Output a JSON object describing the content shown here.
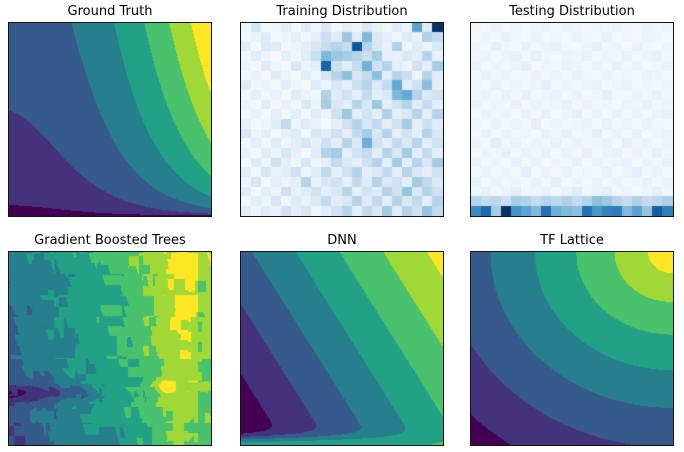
{
  "figure": {
    "background": "#ffffff",
    "spine_color": "#141414",
    "title_color": "#000000"
  },
  "colormaps": {
    "viridis": [
      "#440154",
      "#482475",
      "#414487",
      "#345e8d",
      "#2a788e",
      "#21918c",
      "#22a884",
      "#42be71",
      "#7ad151",
      "#bdde26",
      "#fde725"
    ],
    "blues": [
      "#f7fbff",
      "#deebf7",
      "#c6dbef",
      "#9ecae1",
      "#6baed6",
      "#4292c6",
      "#2171b5",
      "#08519c",
      "#08306b"
    ]
  },
  "chart_data": [
    {
      "id": "ground-truth",
      "title": "Ground Truth",
      "type": "contour",
      "colormap": "viridis",
      "levels": 8,
      "x_range": [
        0,
        1
      ],
      "y_range": [
        0,
        1
      ],
      "ticks": false,
      "model": "product",
      "params": {
        "a0": 0.3,
        "a1": 0.04,
        "a2": 0.66,
        "yexp": 0.3
      }
    },
    {
      "id": "training-distribution",
      "title": "Training Distribution",
      "type": "heatmap",
      "colormap": "blues",
      "rows": 20,
      "cols": 20,
      "ticks": false,
      "grid": [
        [
          0.05,
          0.18,
          0.02,
          0.04,
          0.1,
          0.02,
          0.12,
          0.04,
          0.14,
          0.03,
          0.1,
          0.06,
          0.16,
          0.08,
          0.04,
          0.12,
          0.06,
          0.55,
          0.12,
          1.0
        ],
        [
          0.02,
          0.06,
          0.12,
          0.02,
          0.05,
          0.1,
          0.03,
          0.1,
          0.22,
          0.12,
          0.38,
          0.12,
          0.45,
          0.15,
          0.1,
          0.05,
          0.12,
          0.08,
          0.32,
          0.25
        ],
        [
          0.1,
          0.02,
          0.14,
          0.12,
          0.03,
          0.06,
          0.1,
          0.16,
          0.25,
          0.3,
          0.25,
          0.85,
          0.3,
          0.15,
          0.08,
          0.32,
          0.05,
          0.12,
          0.06,
          0.16
        ],
        [
          0.03,
          0.12,
          0.05,
          0.02,
          0.1,
          0.04,
          0.12,
          0.22,
          0.45,
          0.38,
          0.35,
          0.3,
          0.22,
          0.35,
          0.1,
          0.08,
          0.15,
          0.1,
          0.3,
          0.08
        ],
        [
          0.06,
          0.02,
          0.12,
          0.05,
          0.02,
          0.14,
          0.06,
          0.1,
          0.8,
          0.2,
          0.12,
          0.25,
          0.48,
          0.2,
          0.3,
          0.1,
          0.06,
          0.2,
          0.1,
          0.35
        ],
        [
          0.02,
          0.08,
          0.03,
          0.12,
          0.06,
          0.02,
          0.1,
          0.05,
          0.16,
          0.3,
          0.42,
          0.15,
          0.25,
          0.42,
          0.1,
          0.3,
          0.22,
          0.06,
          0.3,
          0.12
        ],
        [
          0.12,
          0.03,
          0.06,
          0.02,
          0.1,
          0.05,
          0.02,
          0.12,
          0.06,
          0.16,
          0.1,
          0.22,
          0.3,
          0.15,
          0.25,
          0.52,
          0.12,
          0.2,
          0.42,
          0.1
        ],
        [
          0.02,
          0.1,
          0.04,
          0.08,
          0.02,
          0.12,
          0.06,
          0.03,
          0.32,
          0.12,
          0.2,
          0.1,
          0.25,
          0.1,
          0.15,
          0.45,
          0.52,
          0.3,
          0.15,
          0.2
        ],
        [
          0.06,
          0.02,
          0.12,
          0.03,
          0.08,
          0.02,
          0.14,
          0.06,
          0.35,
          0.15,
          0.1,
          0.3,
          0.15,
          0.38,
          0.1,
          0.2,
          0.3,
          0.12,
          0.25,
          0.1
        ],
        [
          0.02,
          0.08,
          0.02,
          0.1,
          0.04,
          0.1,
          0.03,
          0.12,
          0.06,
          0.2,
          0.38,
          0.1,
          0.2,
          0.1,
          0.32,
          0.1,
          0.15,
          0.3,
          0.1,
          0.3
        ],
        [
          0.08,
          0.02,
          0.06,
          0.12,
          0.26,
          0.05,
          0.12,
          0.08,
          0.02,
          0.1,
          0.2,
          0.3,
          0.15,
          0.26,
          0.1,
          0.2,
          0.35,
          0.1,
          0.22,
          0.12
        ],
        [
          0.16,
          0.05,
          0.1,
          0.02,
          0.08,
          0.12,
          0.04,
          0.15,
          0.1,
          0.2,
          0.1,
          0.26,
          0.35,
          0.15,
          0.3,
          0.1,
          0.2,
          0.1,
          0.3,
          0.15
        ],
        [
          0.04,
          0.1,
          0.03,
          0.12,
          0.05,
          0.1,
          0.16,
          0.08,
          0.2,
          0.1,
          0.3,
          0.15,
          0.5,
          0.2,
          0.1,
          0.26,
          0.15,
          0.3,
          0.1,
          0.2
        ],
        [
          0.08,
          0.03,
          0.12,
          0.06,
          0.16,
          0.08,
          0.02,
          0.1,
          0.3,
          0.36,
          0.1,
          0.2,
          0.26,
          0.1,
          0.3,
          0.15,
          0.36,
          0.1,
          0.26,
          0.1
        ],
        [
          0.02,
          0.12,
          0.05,
          0.2,
          0.1,
          0.04,
          0.16,
          0.06,
          0.1,
          0.26,
          0.15,
          0.1,
          0.2,
          0.3,
          0.1,
          0.36,
          0.1,
          0.3,
          0.15,
          0.36
        ],
        [
          0.1,
          0.04,
          0.16,
          0.08,
          0.12,
          0.2,
          0.05,
          0.12,
          0.26,
          0.1,
          0.2,
          0.3,
          0.1,
          0.15,
          0.26,
          0.1,
          0.3,
          0.15,
          0.1,
          0.2
        ],
        [
          0.05,
          0.16,
          0.02,
          0.1,
          0.06,
          0.1,
          0.3,
          0.08,
          0.15,
          0.2,
          0.1,
          0.26,
          0.12,
          0.3,
          0.15,
          0.2,
          0.1,
          0.36,
          0.26,
          0.15
        ],
        [
          0.12,
          0.03,
          0.1,
          0.05,
          0.2,
          0.08,
          0.12,
          0.2,
          0.1,
          0.15,
          0.3,
          0.1,
          0.2,
          0.12,
          0.3,
          0.2,
          0.4,
          0.15,
          0.3,
          0.2
        ],
        [
          0.03,
          0.1,
          0.06,
          0.16,
          0.04,
          0.12,
          0.08,
          0.15,
          0.26,
          0.1,
          0.15,
          0.3,
          0.12,
          0.26,
          0.1,
          0.3,
          0.15,
          0.26,
          0.1,
          0.3
        ],
        [
          0.1,
          0.05,
          0.12,
          0.08,
          0.2,
          0.1,
          0.16,
          0.05,
          0.1,
          0.2,
          0.3,
          0.1,
          0.26,
          0.15,
          0.36,
          0.12,
          0.3,
          0.2,
          0.4,
          0.26
        ]
      ]
    },
    {
      "id": "testing-distribution",
      "title": "Testing Distribution",
      "type": "heatmap",
      "colormap": "blues",
      "rows": 20,
      "cols": 20,
      "ticks": false,
      "grid": [
        [
          0.04,
          0.02,
          0.06,
          0.03,
          0.05,
          0.02,
          0.04,
          0.06,
          0.03,
          0.05,
          0.04,
          0.02,
          0.05,
          0.03,
          0.06,
          0.04,
          0.02,
          0.05,
          0.03,
          0.06
        ],
        [
          0.02,
          0.05,
          0.03,
          0.08,
          0.04,
          0.02,
          0.06,
          0.03,
          0.05,
          0.02,
          0.06,
          0.04,
          0.03,
          0.07,
          0.02,
          0.05,
          0.03,
          0.06,
          0.04,
          0.02
        ],
        [
          0.05,
          0.03,
          0.09,
          0.04,
          0.02,
          0.07,
          0.03,
          0.05,
          0.08,
          0.03,
          0.02,
          0.05,
          0.09,
          0.03,
          0.05,
          0.02,
          0.07,
          0.04,
          0.02,
          0.05
        ],
        [
          0.03,
          0.06,
          0.02,
          0.05,
          0.08,
          0.03,
          0.1,
          0.04,
          0.02,
          0.06,
          0.04,
          0.08,
          0.02,
          0.05,
          0.03,
          0.07,
          0.02,
          0.05,
          0.08,
          0.03
        ],
        [
          0.06,
          0.02,
          0.05,
          0.03,
          0.06,
          0.09,
          0.02,
          0.05,
          0.03,
          0.07,
          0.05,
          0.02,
          0.06,
          0.03,
          0.08,
          0.04,
          0.06,
          0.02,
          0.04,
          0.07
        ],
        [
          0.02,
          0.07,
          0.03,
          0.06,
          0.02,
          0.04,
          0.08,
          0.03,
          0.06,
          0.02,
          0.08,
          0.05,
          0.03,
          0.06,
          0.02,
          0.05,
          0.03,
          0.08,
          0.05,
          0.02
        ],
        [
          0.05,
          0.03,
          0.08,
          0.02,
          0.06,
          0.03,
          0.05,
          0.09,
          0.02,
          0.05,
          0.03,
          0.06,
          0.08,
          0.02,
          0.05,
          0.07,
          0.02,
          0.04,
          0.03,
          0.06
        ],
        [
          0.03,
          0.06,
          0.02,
          0.07,
          0.04,
          0.08,
          0.02,
          0.05,
          0.07,
          0.03,
          0.06,
          0.02,
          0.05,
          0.09,
          0.03,
          0.02,
          0.06,
          0.03,
          0.07,
          0.04
        ],
        [
          0.07,
          0.02,
          0.05,
          0.03,
          0.08,
          0.02,
          0.06,
          0.03,
          0.05,
          0.08,
          0.02,
          0.07,
          0.03,
          0.05,
          0.02,
          0.06,
          0.04,
          0.08,
          0.02,
          0.05
        ],
        [
          0.02,
          0.06,
          0.03,
          0.05,
          0.02,
          0.07,
          0.03,
          0.08,
          0.02,
          0.05,
          0.09,
          0.03,
          0.06,
          0.02,
          0.07,
          0.03,
          0.05,
          0.02,
          0.06,
          0.08
        ],
        [
          0.05,
          0.03,
          0.07,
          0.02,
          0.06,
          0.03,
          0.09,
          0.02,
          0.06,
          0.03,
          0.05,
          0.07,
          0.02,
          0.08,
          0.03,
          0.06,
          0.02,
          0.07,
          0.04,
          0.03
        ],
        [
          0.03,
          0.08,
          0.02,
          0.06,
          0.03,
          0.05,
          0.02,
          0.07,
          0.04,
          0.08,
          0.03,
          0.05,
          0.09,
          0.02,
          0.06,
          0.03,
          0.08,
          0.02,
          0.05,
          0.07
        ],
        [
          0.06,
          0.02,
          0.09,
          0.03,
          0.07,
          0.02,
          0.05,
          0.03,
          0.08,
          0.02,
          0.06,
          0.03,
          0.05,
          0.07,
          0.02,
          0.09,
          0.03,
          0.06,
          0.02,
          0.05
        ],
        [
          0.02,
          0.05,
          0.03,
          0.08,
          0.02,
          0.06,
          0.03,
          0.07,
          0.02,
          0.06,
          0.03,
          0.09,
          0.02,
          0.05,
          0.08,
          0.02,
          0.06,
          0.03,
          0.08,
          0.04
        ],
        [
          0.07,
          0.03,
          0.05,
          0.02,
          0.08,
          0.03,
          0.06,
          0.02,
          0.05,
          0.03,
          0.08,
          0.02,
          0.06,
          0.03,
          0.05,
          0.07,
          0.02,
          0.05,
          0.03,
          0.08
        ],
        [
          0.03,
          0.06,
          0.02,
          0.05,
          0.03,
          0.09,
          0.02,
          0.06,
          0.03,
          0.07,
          0.02,
          0.05,
          0.03,
          0.08,
          0.02,
          0.06,
          0.09,
          0.02,
          0.06,
          0.03
        ],
        [
          0.08,
          0.02,
          0.06,
          0.03,
          0.05,
          0.02,
          0.07,
          0.03,
          0.09,
          0.02,
          0.05,
          0.03,
          0.07,
          0.02,
          0.06,
          0.03,
          0.05,
          0.08,
          0.02,
          0.06
        ],
        [
          0.05,
          0.08,
          0.03,
          0.06,
          0.1,
          0.03,
          0.05,
          0.08,
          0.02,
          0.06,
          0.12,
          0.04,
          0.07,
          0.1,
          0.03,
          0.06,
          0.02,
          0.05,
          0.09,
          0.04
        ],
        [
          0.3,
          0.25,
          0.28,
          0.22,
          0.35,
          0.32,
          0.25,
          0.3,
          0.27,
          0.32,
          0.25,
          0.3,
          0.42,
          0.38,
          0.3,
          0.25,
          0.32,
          0.25,
          0.28,
          0.33
        ],
        [
          0.65,
          0.78,
          0.35,
          1.0,
          0.62,
          0.55,
          0.45,
          0.75,
          0.5,
          0.45,
          0.42,
          0.75,
          0.6,
          0.68,
          0.7,
          0.45,
          0.55,
          0.4,
          0.82,
          0.7
        ]
      ]
    },
    {
      "id": "gradient-boosted-trees",
      "title": "Gradient Boosted Trees",
      "type": "contour",
      "colormap": "viridis",
      "levels": 8,
      "x_range": [
        0,
        1
      ],
      "y_range": [
        0,
        1
      ],
      "ticks": false,
      "model": "trees",
      "params": {
        "base": 0.26,
        "wx": 0.52,
        "wy": 0.14,
        "cells": 19,
        "stripes": 9,
        "jitter": 0.09,
        "noise": 0.1,
        "ridge": {
          "x0": 0.82,
          "sx": 0.09,
          "amp": 0.08
        },
        "streak": {
          "y0": 0.27,
          "sy": 0.05,
          "xs": 0.45,
          "amp": 0.2
        },
        "hline": {
          "y0": 0.3,
          "sy": 0.025,
          "amp": 0.1,
          "x0": 0.5
        },
        "hotspot": {
          "x0": 0.78,
          "y0": 0.3,
          "s": 0.03,
          "amp": 0.25
        },
        "dip": {
          "x0": 0.94,
          "amp": 0.09
        }
      }
    },
    {
      "id": "dnn",
      "title": "DNN",
      "type": "contour",
      "colormap": "viridis",
      "levels": 8,
      "x_range": [
        0,
        1
      ],
      "y_range": [
        0,
        1
      ],
      "ticks": false,
      "model": "linear-bump",
      "params": {
        "wx": 0.7,
        "wy": 0.42,
        "scale": 0.82,
        "bump": {
          "v": 0.53,
          "vx": 0.1,
          "sy": 0.045
        }
      }
    },
    {
      "id": "tf-lattice",
      "title": "TF Lattice",
      "type": "contour",
      "colormap": "viridis",
      "levels": 8,
      "x_range": [
        0,
        1
      ],
      "y_range": [
        0,
        1
      ],
      "ticks": false,
      "model": "radial",
      "params": {
        "scale": 0.74,
        "pow": 0.8,
        "ax": 0.8,
        "ay": 1.0
      }
    }
  ]
}
